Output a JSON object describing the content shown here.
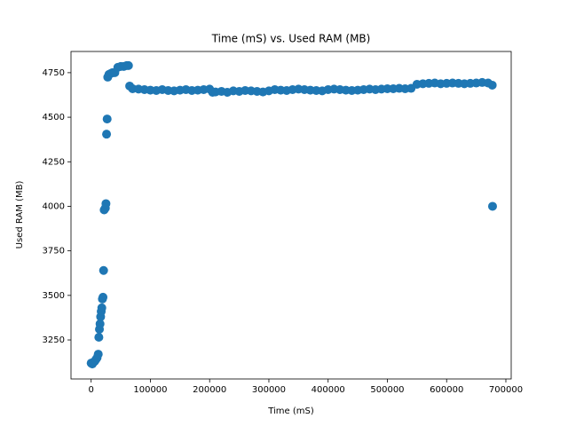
{
  "chart_data": {
    "type": "scatter",
    "title": "Time (mS) vs. Used RAM (MB)",
    "x_label": "Time (mS)",
    "y_label": "Used RAM (MB)",
    "color": "#1f77b4",
    "x": [
      0,
      2000,
      4000,
      6000,
      8000,
      10000,
      12000,
      13000,
      14000,
      15000,
      16000,
      17000,
      18000,
      19000,
      20000,
      21000,
      22000,
      24000,
      25000,
      26000,
      27000,
      28000,
      30000,
      33000,
      36000,
      40000,
      45000,
      50000,
      55000,
      60000,
      63000,
      65000,
      70000,
      80000,
      90000,
      100000,
      110000,
      120000,
      130000,
      140000,
      150000,
      160000,
      170000,
      180000,
      190000,
      200000,
      205000,
      210000,
      220000,
      230000,
      240000,
      250000,
      260000,
      270000,
      280000,
      290000,
      300000,
      310000,
      320000,
      330000,
      340000,
      350000,
      360000,
      370000,
      380000,
      390000,
      400000,
      410000,
      420000,
      430000,
      440000,
      450000,
      460000,
      470000,
      480000,
      490000,
      500000,
      510000,
      520000,
      530000,
      540000,
      550000,
      560000,
      570000,
      580000,
      590000,
      600000,
      610000,
      620000,
      630000,
      640000,
      650000,
      660000,
      670000,
      677000,
      677500
    ],
    "y": [
      3120,
      3115,
      3125,
      3130,
      3140,
      3150,
      3170,
      3265,
      3310,
      3340,
      3380,
      3410,
      3430,
      3480,
      3490,
      3640,
      3980,
      3990,
      4015,
      4405,
      4490,
      4725,
      4740,
      4745,
      4750,
      4750,
      4780,
      4785,
      4785,
      4790,
      4790,
      4675,
      4660,
      4658,
      4655,
      4652,
      4650,
      4655,
      4650,
      4648,
      4652,
      4655,
      4650,
      4652,
      4655,
      4658,
      4640,
      4642,
      4645,
      4640,
      4648,
      4645,
      4650,
      4648,
      4645,
      4642,
      4648,
      4655,
      4652,
      4650,
      4655,
      4658,
      4655,
      4652,
      4650,
      4648,
      4655,
      4658,
      4655,
      4652,
      4650,
      4652,
      4655,
      4658,
      4655,
      4658,
      4660,
      4660,
      4662,
      4660,
      4662,
      4685,
      4688,
      4690,
      4692,
      4688,
      4690,
      4692,
      4690,
      4688,
      4690,
      4692,
      4695,
      4692,
      4680,
      4000
    ],
    "xlim": [
      -34000,
      709000
    ],
    "ylim": [
      3031,
      4869
    ],
    "xticks": [
      0,
      100000,
      200000,
      300000,
      400000,
      500000,
      600000,
      700000
    ],
    "yticks": [
      3250,
      3500,
      3750,
      4000,
      4250,
      4500,
      4750
    ]
  }
}
